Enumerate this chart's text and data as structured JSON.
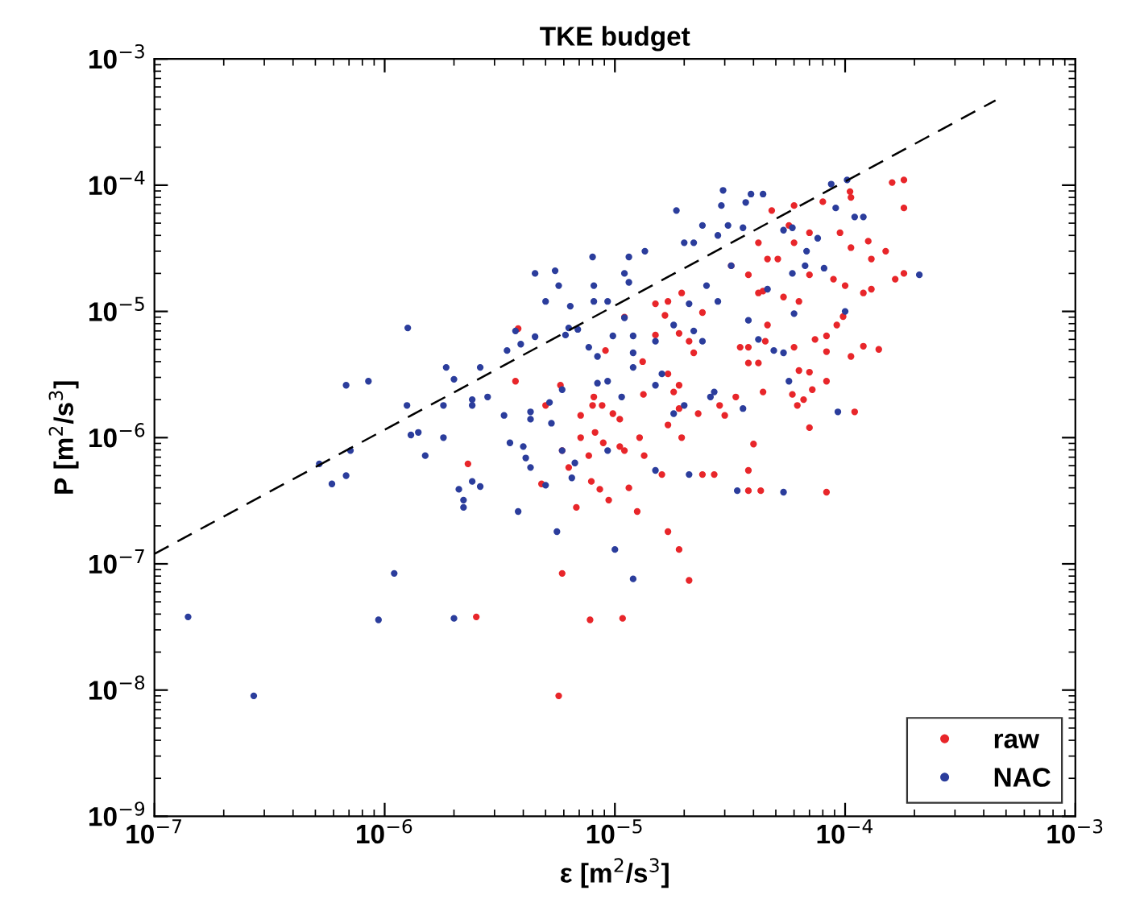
{
  "chart_data": {
    "type": "scatter",
    "title": "TKE budget",
    "xlabel": "ε [m$^{2}$/s$^{3}$]",
    "ylabel": "P [m$^{2}$/s$^{3}$]",
    "log": "xy",
    "xlim": [
      1e-07,
      0.001
    ],
    "ylim": [
      1e-09,
      0.001
    ],
    "xticks": [
      {
        "value": 1e-07,
        "label": "10$^{−7}$"
      },
      {
        "value": 1e-06,
        "label": "10$^{−6}$"
      },
      {
        "value": 1e-05,
        "label": "10$^{−5}$"
      },
      {
        "value": 0.0001,
        "label": "10$^{−4}$"
      },
      {
        "value": 0.001,
        "label": "10$^{−3}$"
      }
    ],
    "yticks": [
      {
        "value": 1e-09,
        "label": "10$^{−9}$"
      },
      {
        "value": 1e-08,
        "label": "10$^{−8}$"
      },
      {
        "value": 1e-07,
        "label": "10$^{−7}$"
      },
      {
        "value": 1e-06,
        "label": "10$^{−6}$"
      },
      {
        "value": 1e-05,
        "label": "10$^{−5}$"
      },
      {
        "value": 0.0001,
        "label": "10$^{−4}$"
      },
      {
        "value": 0.001,
        "label": "10$^{−3}$"
      }
    ],
    "grid": false,
    "legend": "bottom right",
    "series": [
      {
        "type": "line",
        "line_style": "dashed",
        "color": "#000000",
        "x": [
          1e-07,
          0.00045
        ],
        "values": [
          1.2e-07,
          0.00047
        ]
      },
      {
        "name": "raw",
        "marker": "circle",
        "color": "#e8262a",
        "x": [
          2.5e-06,
          5.7e-06,
          5.9e-06,
          7.8e-06,
          1.08e-05,
          3.8e-06,
          3.7e-06,
          2.3e-06,
          4.8e-06,
          5e-06,
          5.8e-06,
          5.9e-06,
          6.3e-06,
          6.8e-06,
          7.1e-06,
          7.1e-06,
          8e-06,
          8.1e-06,
          8.2e-06,
          7.7e-06,
          7.9e-06,
          8.6e-06,
          8.9e-06,
          9.4e-06,
          8.8e-06,
          9.8e-06,
          1.05e-05,
          1.05e-05,
          1.1e-05,
          1.15e-05,
          1.25e-05,
          9.1e-06,
          1.1e-05,
          1.32e-05,
          1.33e-05,
          1.28e-05,
          1.34e-05,
          1.7e-05,
          1.9e-05,
          2.1e-05,
          1.6e-05,
          2.4e-05,
          2.7e-05,
          3.8e-05,
          1.7e-05,
          1.95e-05,
          1.9e-05,
          1.8e-05,
          1.7e-05,
          1.9e-05,
          2.3e-05,
          2.85e-05,
          3e-05,
          3.35e-05,
          4e-05,
          1.5e-05,
          1.9e-05,
          2.1e-05,
          2.2e-05,
          1.7e-05,
          1.95e-05,
          2.4e-05,
          3.2e-05,
          3.8e-05,
          4.2e-05,
          4.4e-05,
          3.5e-05,
          3.8e-05,
          4.2e-05,
          1.5e-05,
          1.65e-05,
          0.00016,
          0.00018,
          0.00018,
          0.000105,
          0.000106,
          9.5e-05,
          0.000126,
          0.00015,
          0.000106,
          0.00013,
          0.00018,
          0.000165,
          8.9e-05,
          0.0001,
          0.00013,
          0.00012,
          9.8e-05,
          9.2e-05,
          8.3e-05,
          0.00012,
          0.00014,
          0.000106,
          8.3e-05,
          7.4e-05,
          8.3e-05,
          7e-05,
          0.00011,
          7e-05,
          8.3e-05,
          4.3e-05,
          3.8e-05,
          6.2e-05,
          5.9e-05,
          7.2e-05,
          6.6e-05,
          6.3e-05,
          4.4e-05,
          6e-05,
          4.5e-05,
          3.8e-05,
          4.6e-05,
          6.3e-05,
          5.4e-05,
          4.2e-05,
          7e-05,
          5.1e-05,
          4.6e-05,
          6e-05,
          7e-05,
          5.7e-05,
          4.8e-05,
          6e-05,
          8e-05
        ],
        "values": [
          3.8e-08,
          9e-09,
          8.4e-08,
          3.6e-08,
          3.7e-08,
          7.3e-06,
          2.8e-06,
          6.2e-07,
          4.3e-07,
          1.8e-06,
          2.6e-06,
          7.9e-07,
          5.8e-07,
          2.8e-07,
          1e-06,
          1.5e-06,
          1.8e-06,
          2.1e-06,
          1.1e-06,
          7.2e-07,
          4.5e-07,
          3.9e-07,
          9.1e-07,
          3.2e-07,
          1.8e-06,
          1.55e-06,
          1.4e-06,
          8.5e-07,
          7.9e-07,
          4e-07,
          2.6e-07,
          4.9e-06,
          9e-06,
          4e-06,
          2.2e-06,
          1e-06,
          7.2e-07,
          1.8e-07,
          1.3e-07,
          7.4e-08,
          5.1e-07,
          5.1e-07,
          5.1e-07,
          3.8e-07,
          1.26e-06,
          1e-06,
          1.7e-06,
          2.3e-06,
          3.2e-06,
          2.6e-06,
          1.55e-06,
          1.8e-06,
          1.5e-06,
          2.1e-06,
          8.9e-07,
          6.5e-06,
          6.7e-06,
          5.8e-06,
          4.7e-06,
          1.2e-05,
          1.4e-05,
          9.8e-06,
          2.3e-05,
          1.95e-05,
          3.5e-05,
          1.45e-05,
          5.2e-06,
          3.9e-06,
          3.9e-06,
          1.15e-05,
          9.3e-06,
          0.000105,
          0.00011,
          6.6e-05,
          8.9e-05,
          8e-05,
          4.2e-05,
          3.6e-05,
          3e-05,
          3.2e-05,
          2.6e-05,
          2e-05,
          1.8e-05,
          1.8e-05,
          1.6e-05,
          1.5e-05,
          1.4e-05,
          9.1e-06,
          7.8e-06,
          6.4e-06,
          5.3e-06,
          5e-06,
          4.4e-06,
          4.8e-06,
          6e-06,
          2.8e-06,
          3.3e-06,
          1.6e-06,
          1.2e-06,
          3.7e-07,
          3.8e-07,
          5.5e-07,
          1.8e-06,
          2.2e-06,
          2.4e-06,
          2e-06,
          3.4e-06,
          2.3e-06,
          5.2e-06,
          5.8e-06,
          5.2e-06,
          7.8e-06,
          1.2e-05,
          1.3e-05,
          1.4e-05,
          1.95e-05,
          2.6e-05,
          2.6e-05,
          3.5e-05,
          4.2e-05,
          4.8e-05,
          6.3e-05,
          6.9e-05,
          7.4e-05
        ]
      },
      {
        "name": "NAC",
        "marker": "circle",
        "color": "#2b3d9c",
        "x": [
          1.4e-07,
          2.7e-07,
          9.4e-07,
          1.1e-06,
          2e-06,
          1e-05,
          1.2e-05,
          5.6e-06,
          3.8e-06,
          5.2e-07,
          5.9e-07,
          6.8e-07,
          7.1e-07,
          6.8e-07,
          8.5e-07,
          1.26e-06,
          1.25e-06,
          1.3e-06,
          1.4e-06,
          1.5e-06,
          1.8e-06,
          1.8e-06,
          1.85e-06,
          2e-06,
          2.1e-06,
          2.2e-06,
          2.2e-06,
          2.4e-06,
          2.6e-06,
          2.4e-06,
          2.4e-06,
          2.6e-06,
          2.8e-06,
          3.3e-06,
          3.4e-06,
          3.5e-06,
          3.7e-06,
          3.9e-06,
          4.5e-06,
          4.5e-06,
          5.5e-06,
          5.7e-06,
          5e-06,
          4.3e-06,
          4.3e-06,
          4e-06,
          4.1e-06,
          4.3e-06,
          5e-06,
          5.2e-06,
          5.3e-06,
          5.9e-06,
          5.9e-06,
          6.1e-06,
          6.3e-06,
          6.4e-06,
          6.9e-06,
          8e-06,
          8.1e-06,
          8.1e-06,
          1.15e-05,
          1.1e-05,
          9.3e-06,
          9.3e-06,
          1.07e-05,
          9.3e-06,
          6.7e-06,
          6.5e-06,
          7.7e-06,
          8.4e-06,
          8.4e-06,
          9.8e-06,
          1.1e-05,
          1.2e-05,
          1.2e-05,
          1.2e-05,
          2.1e-05,
          1.5e-05,
          3.4e-05,
          2.7e-05,
          2.6e-05,
          3.6e-05,
          1.8e-05,
          2e-05,
          1.85e-05,
          2.95e-05,
          2.9e-05,
          3.9e-05,
          3.7e-05,
          2.4e-05,
          2.8e-05,
          3.1e-05,
          3.6e-05,
          2e-05,
          2.2e-05,
          2.5e-05,
          2.8e-05,
          3.2e-05,
          2.1e-05,
          1.8e-05,
          2.2e-05,
          2.4e-05,
          4.2e-05,
          3.8e-05,
          1.15e-05,
          1.35e-05,
          1.5e-05,
          1.6e-05,
          1.5e-05,
          8.7e-05,
          0.000102,
          9.1e-05,
          0.00012,
          0.00011,
          0.00021,
          0.0001,
          9.3e-05,
          5.4e-05,
          5.7e-05,
          5.4e-05,
          4.9e-05,
          6e-05,
          4.6e-05,
          6.7e-05,
          5.9e-05,
          7.6e-05,
          6.8e-05,
          5.9e-05,
          5.4e-05,
          4.4e-05,
          8.1e-05
        ],
        "values": [
          3.8e-08,
          9e-09,
          3.6e-08,
          8.4e-08,
          3.7e-08,
          1.3e-07,
          7.6e-08,
          1.8e-07,
          2.6e-07,
          6.2e-07,
          4.3e-07,
          5e-07,
          7.9e-07,
          2.6e-06,
          2.8e-06,
          7.4e-06,
          1.8e-06,
          1.05e-06,
          1.1e-06,
          7.2e-07,
          1e-06,
          1.8e-06,
          3.6e-06,
          2.9e-06,
          3.9e-07,
          3.2e-07,
          2.8e-07,
          4.5e-07,
          4.1e-07,
          2e-06,
          1.8e-06,
          3.6e-06,
          2.1e-06,
          1.5e-06,
          4.9e-06,
          9.1e-07,
          7e-06,
          5.5e-06,
          6.3e-06,
          2e-05,
          2.1e-05,
          1.6e-05,
          1.2e-05,
          1.6e-06,
          1.4e-06,
          8.5e-07,
          6.9e-07,
          5.8e-07,
          4.2e-07,
          1.9e-06,
          1.3e-06,
          2.4e-06,
          7.9e-07,
          6.5e-06,
          7.4e-06,
          1.1e-05,
          7.2e-06,
          2.7e-05,
          1.6e-05,
          1.2e-05,
          2.7e-05,
          2e-05,
          1.2e-05,
          2.8e-06,
          2.1e-06,
          7.9e-07,
          6.3e-07,
          4.8e-07,
          5.2e-06,
          4.4e-06,
          2.7e-06,
          6.4e-06,
          8.9e-06,
          6.4e-06,
          4.7e-06,
          3.6e-06,
          5.1e-07,
          5.5e-07,
          3.8e-07,
          2.3e-06,
          2.1e-06,
          1.7e-06,
          1.55e-06,
          1.8e-06,
          6.3e-05,
          9.1e-05,
          6.9e-05,
          8.5e-05,
          7.3e-05,
          4.8e-05,
          4e-05,
          4.8e-05,
          4.6e-05,
          3.5e-05,
          3.5e-05,
          1.6e-05,
          1.2e-05,
          2.3e-05,
          1.15e-05,
          7.8e-06,
          7e-06,
          5.8e-06,
          6e-06,
          8.5e-06,
          1.7e-05,
          3e-05,
          5.8e-06,
          3.2e-06,
          2.6e-06,
          0.000102,
          0.00011,
          6.6e-05,
          5.6e-05,
          5.6e-05,
          1.95e-05,
          1e-05,
          1.6e-06,
          3.7e-07,
          2.8e-06,
          4.7e-06,
          4.9e-06,
          9.6e-06,
          1.5e-05,
          2.3e-05,
          2e-05,
          3.8e-05,
          3e-05,
          4.6e-05,
          4.4e-05,
          8.5e-05,
          2.2e-05
        ]
      }
    ]
  }
}
